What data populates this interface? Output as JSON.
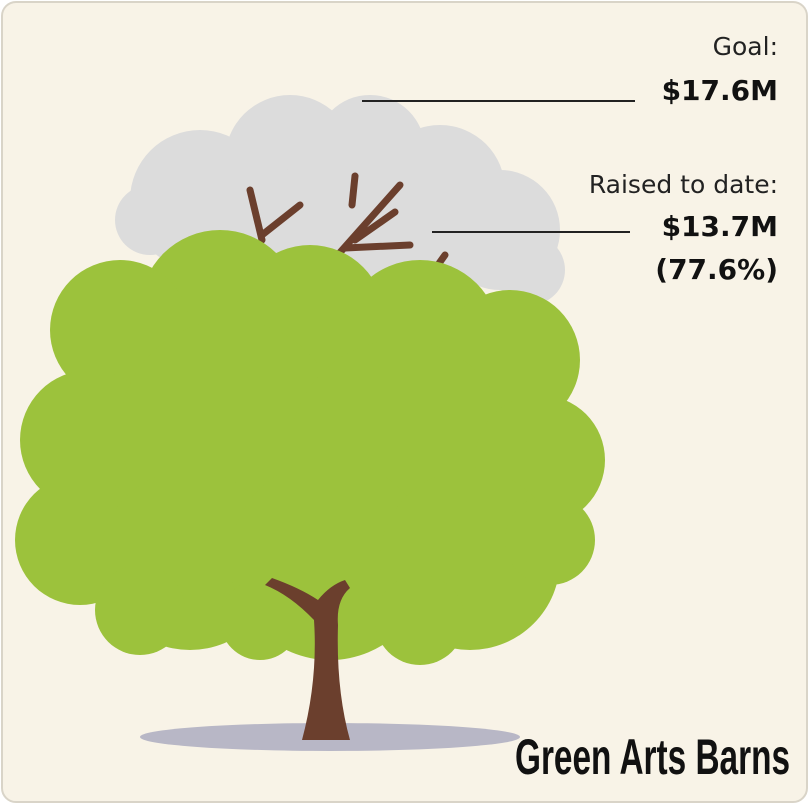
{
  "goal": {
    "label": "Goal:",
    "amount": "$17.6M"
  },
  "raised": {
    "label": "Raised to date:",
    "amount": "$13.7M",
    "percent": "(77.6%)"
  },
  "title": "Green Arts Barns"
}
